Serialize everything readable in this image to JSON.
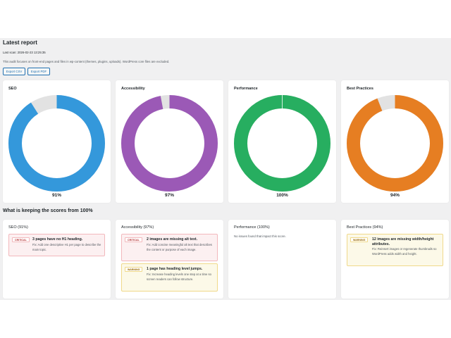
{
  "report": {
    "title": "Latest report",
    "last_scan": "Last scan: 2026-02-23 13:25:35",
    "note": "This audit focuses on front-end pages and files in wp-content (themes, plugins, uploads). WordPress core files are excluded.",
    "export_csv": "Export CSV",
    "export_pdf": "Export PDF"
  },
  "colors": {
    "seo": "#3498db",
    "accessibility": "#9b59b6",
    "performance": "#27ae60",
    "best_practices": "#e67e22",
    "track": "#e2e2e2"
  },
  "scores": [
    {
      "title": "SEO",
      "percent_label": "91%",
      "value": 91,
      "color": "#3498db"
    },
    {
      "title": "Accessibility",
      "percent_label": "97%",
      "value": 97,
      "color": "#9b59b6"
    },
    {
      "title": "Performance",
      "percent_label": "100%",
      "value": 100,
      "color": "#27ae60"
    },
    {
      "title": "Best Practices",
      "percent_label": "94%",
      "value": 94,
      "color": "#e67e22"
    }
  ],
  "section_title": "What is keeping the scores from 100%",
  "issue_columns": [
    {
      "title": "SEO (91%)",
      "issues": [
        {
          "severity": "CRITICAL",
          "heading": "3 pages have no H1 heading.",
          "fix": "Fix: Add one descriptive H1 per page to describe the main topic."
        }
      ]
    },
    {
      "title": "Accessibility (97%)",
      "issues": [
        {
          "severity": "CRITICAL",
          "heading": "2 images are missing alt text.",
          "fix": "Fix: Add concise meaningful alt text that describes the content or purpose of each image."
        },
        {
          "severity": "WARNING",
          "heading": "1 page has heading level jumps.",
          "fix": "Fix: Increase heading levels one step at a time so screen readers can follow structure."
        }
      ]
    },
    {
      "title": "Performance (100%)",
      "empty_text": "No issues found that impact this score."
    },
    {
      "title": "Best Practices (94%)",
      "issues": [
        {
          "severity": "WARNING",
          "heading": "12 images are missing width/height attributes.",
          "fix": "Fix: Reinsert images or regenerate thumbnails so WordPress adds width and height."
        }
      ]
    }
  ]
}
